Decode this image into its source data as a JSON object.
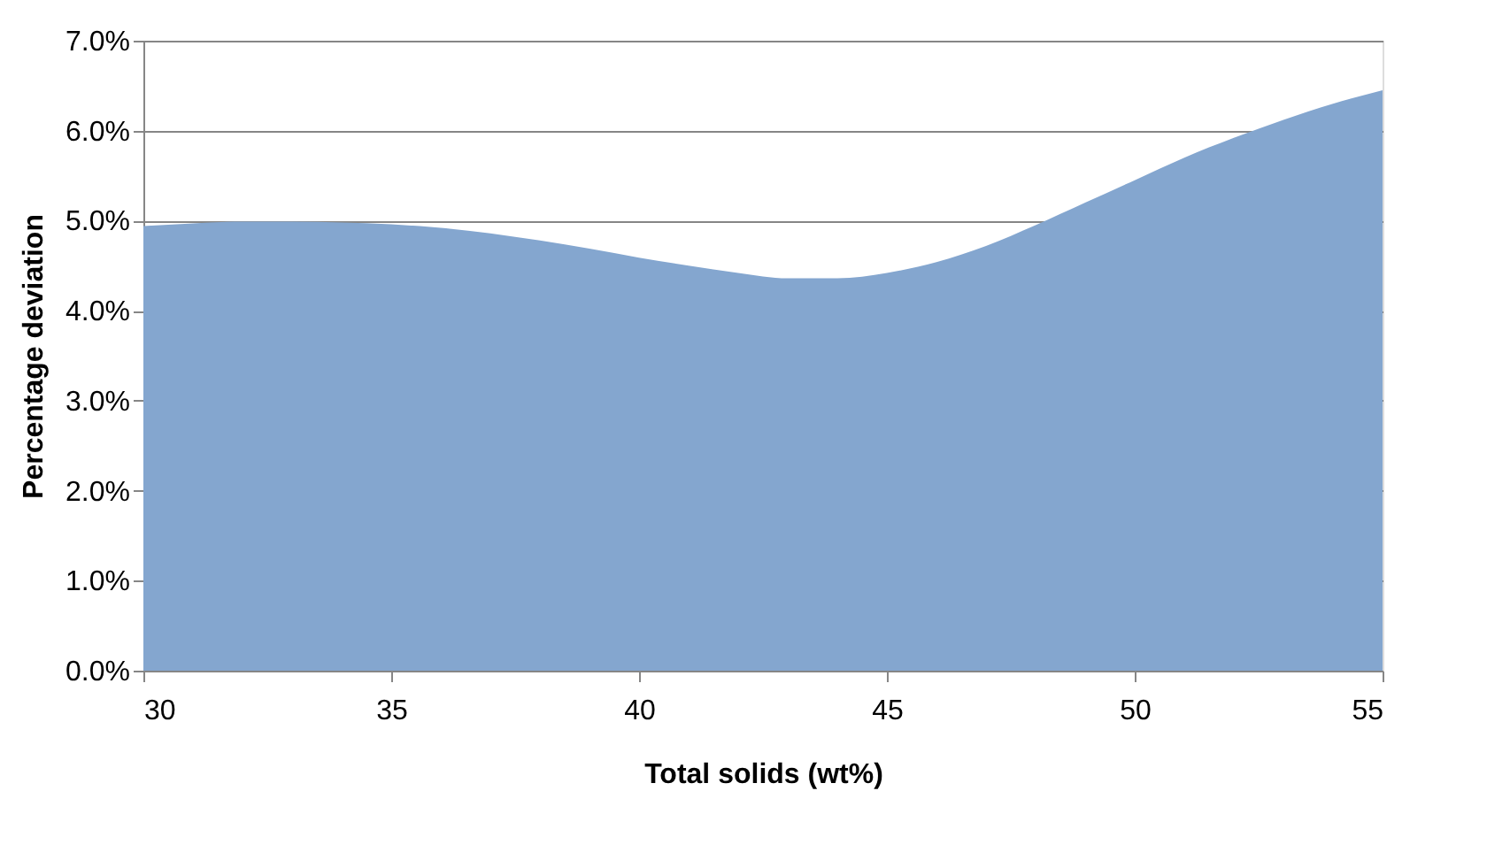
{
  "chart_data": {
    "type": "area",
    "xlabel": "Total solids (wt%)",
    "ylabel": "Percentage deviation",
    "x": [
      30,
      31,
      32,
      33,
      34,
      35,
      36,
      37,
      38,
      39,
      40,
      41,
      42,
      43,
      44,
      45,
      46,
      47,
      48,
      49,
      50,
      51,
      52,
      53,
      54,
      55
    ],
    "series": [
      {
        "color": "#84a6cf",
        "values": [
          4.94,
          4.97,
          4.99,
          4.99,
          4.98,
          4.96,
          4.92,
          4.86,
          4.78,
          4.69,
          4.59,
          4.5,
          4.42,
          4.36,
          4.36,
          4.42,
          4.54,
          4.72,
          4.95,
          5.2,
          5.45,
          5.7,
          5.92,
          6.12,
          6.3,
          6.45
        ]
      }
    ],
    "xlim": [
      30,
      55
    ],
    "xticks": [
      30,
      35,
      40,
      45,
      50,
      55
    ],
    "ylim": [
      0,
      7
    ],
    "yticks": [
      {
        "value": 0,
        "label": "0.0%"
      },
      {
        "value": 1,
        "label": "1.0%"
      },
      {
        "value": 2,
        "label": "2.0%"
      },
      {
        "value": 3,
        "label": "3.0%"
      },
      {
        "value": 4,
        "label": "4.0%"
      },
      {
        "value": 5,
        "label": "5.0%"
      },
      {
        "value": 6,
        "label": "6.0%"
      },
      {
        "value": 7,
        "label": "7.0%"
      }
    ],
    "grid": "y"
  }
}
